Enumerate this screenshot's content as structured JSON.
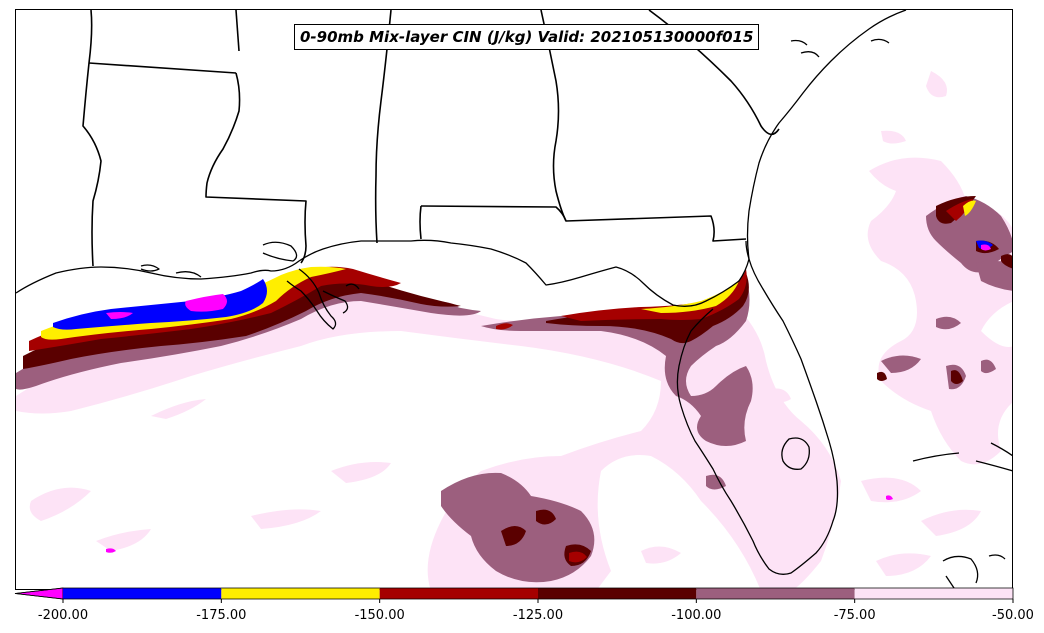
{
  "map": {
    "title": "0-90mb Mix-layer CIN (J/kg) Valid: 202105130000f015",
    "colors": {
      "land_outline": "#000000",
      "background": "#ffffff"
    }
  },
  "legend": {
    "bins": [
      {
        "from": -225.0,
        "to": -200.0,
        "color": "#ff00ff"
      },
      {
        "from": -200.0,
        "to": -175.0,
        "color": "#0000ff"
      },
      {
        "from": -175.0,
        "to": -150.0,
        "color": "#ffee00"
      },
      {
        "from": -150.0,
        "to": -125.0,
        "color": "#a50000"
      },
      {
        "from": -125.0,
        "to": -100.0,
        "color": "#5a0000"
      },
      {
        "from": -100.0,
        "to": -75.0,
        "color": "#9c5f7e"
      },
      {
        "from": -75.0,
        "to": -50.0,
        "color": "#fde3f6"
      }
    ],
    "tick_labels": [
      "-200.00",
      "-175.00",
      "-150.00",
      "-125.00",
      "-100.00",
      "-75.00",
      "-50.00"
    ],
    "extend": "min"
  }
}
